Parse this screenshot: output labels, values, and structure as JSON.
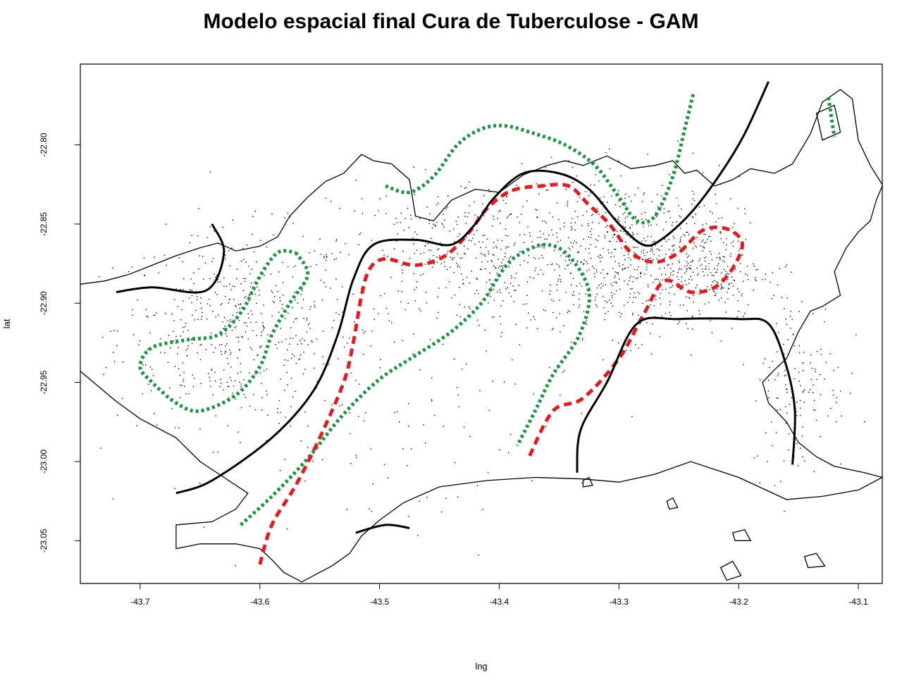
{
  "title": "Modelo espacial final Cura de Tuberculose - GAM",
  "chart_data": {
    "type": "map",
    "xlabel": "lng",
    "ylabel": "lat",
    "xlim": [
      -43.75,
      -43.08
    ],
    "ylim": [
      -23.077,
      -22.749
    ],
    "x_ticks": [
      -43.7,
      -43.6,
      -43.5,
      -43.4,
      -43.3,
      -43.2,
      -43.1
    ],
    "x_tick_labels": [
      "-43.7",
      "-43.6",
      "-43.5",
      "-43.4",
      "-43.3",
      "-43.2",
      "-43.1"
    ],
    "y_ticks": [
      -22.8,
      -22.85,
      -22.9,
      -22.95,
      -23.0,
      -23.05
    ],
    "y_tick_labels": [
      "-22.80",
      "-22.85",
      "-22.90",
      "-22.95",
      "-23.00",
      "-23.05"
    ],
    "colors": {
      "green_contour": "#1a9641",
      "red_contour": "#e41a1c",
      "black_contour": "#000000",
      "boundary": "#000000"
    },
    "boundary": [
      [
        -43.75,
        -22.888
      ],
      [
        -43.73,
        -22.886
      ],
      [
        -43.71,
        -22.882
      ],
      [
        -43.69,
        -22.876
      ],
      [
        -43.67,
        -22.87
      ],
      [
        -43.65,
        -22.865
      ],
      [
        -43.635,
        -22.862
      ],
      [
        -43.62,
        -22.867
      ],
      [
        -43.6,
        -22.864
      ],
      [
        -43.585,
        -22.858
      ],
      [
        -43.575,
        -22.845
      ],
      [
        -43.56,
        -22.833
      ],
      [
        -43.545,
        -22.823
      ],
      [
        -43.53,
        -22.818
      ],
      [
        -43.515,
        -22.806
      ],
      [
        -43.505,
        -22.81
      ],
      [
        -43.49,
        -22.812
      ],
      [
        -43.475,
        -22.822
      ],
      [
        -43.47,
        -22.845
      ],
      [
        -43.455,
        -22.848
      ],
      [
        -43.44,
        -22.835
      ],
      [
        -43.42,
        -22.828
      ],
      [
        -43.4,
        -22.83
      ],
      [
        -43.38,
        -22.819
      ],
      [
        -43.36,
        -22.813
      ],
      [
        -43.345,
        -22.81
      ],
      [
        -43.33,
        -22.813
      ],
      [
        -43.31,
        -22.807
      ],
      [
        -43.29,
        -22.815
      ],
      [
        -43.27,
        -22.813
      ],
      [
        -43.255,
        -22.81
      ],
      [
        -43.245,
        -22.818
      ],
      [
        -43.235,
        -22.816
      ],
      [
        -43.22,
        -22.826
      ],
      [
        -43.205,
        -22.822
      ],
      [
        -43.19,
        -22.815
      ],
      [
        -43.17,
        -22.818
      ],
      [
        -43.155,
        -22.812
      ],
      [
        -43.14,
        -22.793
      ],
      [
        -43.13,
        -22.773
      ],
      [
        -43.115,
        -22.765
      ],
      [
        -43.105,
        -22.771
      ],
      [
        -43.1,
        -22.797
      ],
      [
        -43.09,
        -22.813
      ],
      [
        -43.08,
        -22.825
      ],
      [
        -43.08,
        -22.826
      ],
      [
        -43.085,
        -22.835
      ],
      [
        -43.09,
        -22.848
      ],
      [
        -43.1,
        -22.855
      ],
      [
        -43.11,
        -22.865
      ],
      [
        -43.12,
        -22.88
      ],
      [
        -43.115,
        -22.895
      ],
      [
        -43.13,
        -22.902
      ],
      [
        -43.14,
        -22.905
      ],
      [
        -43.15,
        -22.918
      ],
      [
        -43.16,
        -22.935
      ],
      [
        -43.17,
        -22.942
      ],
      [
        -43.18,
        -22.95
      ],
      [
        -43.175,
        -22.963
      ],
      [
        -43.16,
        -22.975
      ],
      [
        -43.15,
        -22.988
      ],
      [
        -43.135,
        -22.997
      ],
      [
        -43.12,
        -23.003
      ],
      [
        -43.095,
        -23.007
      ],
      [
        -43.08,
        -23.01
      ],
      [
        -43.08,
        -23.01
      ],
      [
        -43.1,
        -23.018
      ],
      [
        -43.13,
        -23.022
      ],
      [
        -43.16,
        -23.024
      ],
      [
        -43.2,
        -23.01
      ],
      [
        -43.24,
        -23.0
      ],
      [
        -43.27,
        -23.008
      ],
      [
        -43.3,
        -23.013
      ],
      [
        -43.33,
        -23.011
      ],
      [
        -43.37,
        -23.01
      ],
      [
        -43.41,
        -23.012
      ],
      [
        -43.45,
        -23.016
      ],
      [
        -43.48,
        -23.026
      ],
      [
        -43.5,
        -23.037
      ],
      [
        -43.515,
        -23.047
      ],
      [
        -43.525,
        -23.058
      ],
      [
        -43.54,
        -23.066
      ],
      [
        -43.555,
        -23.072
      ],
      [
        -43.565,
        -23.076
      ],
      [
        -43.58,
        -23.07
      ],
      [
        -43.59,
        -23.062
      ],
      [
        -43.6,
        -23.055
      ],
      [
        -43.62,
        -23.052
      ],
      [
        -43.65,
        -23.052
      ],
      [
        -43.67,
        -23.055
      ],
      [
        -43.67,
        -23.04
      ],
      [
        -43.64,
        -23.038
      ],
      [
        -43.62,
        -23.03
      ],
      [
        -43.61,
        -23.02
      ],
      [
        -43.63,
        -23.01
      ],
      [
        -43.65,
        -23.0
      ],
      [
        -43.67,
        -22.985
      ],
      [
        -43.7,
        -22.973
      ],
      [
        -43.72,
        -22.962
      ],
      [
        -43.75,
        -22.943
      ]
    ],
    "islands": [
      [
        [
          -43.215,
          -23.067
        ],
        [
          -43.205,
          -23.063
        ],
        [
          -43.198,
          -23.072
        ],
        [
          -43.21,
          -23.075
        ]
      ],
      [
        [
          -43.145,
          -23.06
        ],
        [
          -43.135,
          -23.058
        ],
        [
          -43.128,
          -23.066
        ],
        [
          -43.142,
          -23.067
        ]
      ],
      [
        [
          -43.33,
          -23.012
        ],
        [
          -43.325,
          -23.01
        ],
        [
          -43.322,
          -23.015
        ],
        [
          -43.33,
          -23.016
        ]
      ],
      [
        [
          -43.135,
          -22.78
        ],
        [
          -43.12,
          -22.775
        ],
        [
          -43.115,
          -22.792
        ],
        [
          -43.13,
          -22.797
        ]
      ],
      [
        [
          -43.26,
          -23.025
        ],
        [
          -43.255,
          -23.023
        ],
        [
          -43.251,
          -23.029
        ],
        [
          -43.258,
          -23.03
        ]
      ],
      [
        [
          -43.205,
          -23.045
        ],
        [
          -43.195,
          -23.043
        ],
        [
          -43.19,
          -23.05
        ],
        [
          -43.203,
          -23.05
        ]
      ]
    ],
    "contours": [
      {
        "color": "green",
        "style": "dotted",
        "points": [
          [
            -43.495,
            -22.826
          ],
          [
            -43.475,
            -22.83
          ],
          [
            -43.455,
            -22.82
          ],
          [
            -43.435,
            -22.8
          ],
          [
            -43.415,
            -22.79
          ],
          [
            -43.395,
            -22.788
          ],
          [
            -43.37,
            -22.793
          ],
          [
            -43.345,
            -22.8
          ],
          [
            -43.32,
            -22.813
          ],
          [
            -43.3,
            -22.833
          ],
          [
            -43.285,
            -22.848
          ],
          [
            -43.27,
            -22.845
          ],
          [
            -43.255,
            -22.82
          ],
          [
            -43.245,
            -22.79
          ],
          [
            -43.238,
            -22.768
          ]
        ]
      },
      {
        "color": "green",
        "style": "dotted",
        "points": [
          [
            -43.125,
            -22.77
          ],
          [
            -43.12,
            -22.795
          ]
        ]
      },
      {
        "color": "green",
        "style": "dotted",
        "points": [
          [
            -43.57,
            -22.868
          ],
          [
            -43.56,
            -22.882
          ],
          [
            -43.575,
            -22.9
          ],
          [
            -43.59,
            -22.92
          ],
          [
            -43.6,
            -22.94
          ],
          [
            -43.62,
            -22.958
          ],
          [
            -43.65,
            -22.968
          ],
          [
            -43.67,
            -22.963
          ],
          [
            -43.69,
            -22.95
          ],
          [
            -43.7,
            -22.94
          ],
          [
            -43.69,
            -22.928
          ],
          [
            -43.66,
            -22.923
          ],
          [
            -43.635,
            -22.92
          ],
          [
            -43.615,
            -22.905
          ],
          [
            -43.6,
            -22.883
          ],
          [
            -43.585,
            -22.868
          ],
          [
            -43.57,
            -22.868
          ]
        ]
      },
      {
        "color": "green",
        "style": "dotted",
        "points": [
          [
            -43.616,
            -23.04
          ],
          [
            -43.59,
            -23.022
          ],
          [
            -43.56,
            -22.998
          ],
          [
            -43.53,
            -22.97
          ],
          [
            -43.5,
            -22.948
          ],
          [
            -43.47,
            -22.933
          ],
          [
            -43.44,
            -22.918
          ],
          [
            -43.415,
            -22.9
          ],
          [
            -43.398,
            -22.88
          ],
          [
            -43.385,
            -22.87
          ],
          [
            -43.362,
            -22.863
          ],
          [
            -43.342,
            -22.87
          ],
          [
            -43.325,
            -22.893
          ],
          [
            -43.333,
            -22.92
          ],
          [
            -43.355,
            -22.945
          ],
          [
            -43.37,
            -22.968
          ],
          [
            -43.385,
            -22.99
          ]
        ]
      },
      {
        "color": "red",
        "style": "dashed",
        "points": [
          [
            -43.6,
            -23.065
          ],
          [
            -43.59,
            -23.04
          ],
          [
            -43.57,
            -23.015
          ],
          [
            -43.55,
            -22.985
          ],
          [
            -43.53,
            -22.95
          ],
          [
            -43.522,
            -22.925
          ],
          [
            -43.515,
            -22.895
          ],
          [
            -43.508,
            -22.878
          ],
          [
            -43.495,
            -22.872
          ],
          [
            -43.47,
            -22.876
          ],
          [
            -43.445,
            -22.87
          ],
          [
            -43.425,
            -22.855
          ],
          [
            -43.41,
            -22.84
          ],
          [
            -43.39,
            -22.829
          ],
          [
            -43.365,
            -22.826
          ],
          [
            -43.342,
            -22.826
          ],
          [
            -43.325,
            -22.838
          ],
          [
            -43.308,
            -22.85
          ],
          [
            -43.29,
            -22.868
          ],
          [
            -43.27,
            -22.874
          ],
          [
            -43.25,
            -22.868
          ],
          [
            -43.23,
            -22.854
          ],
          [
            -43.21,
            -22.853
          ],
          [
            -43.197,
            -22.862
          ],
          [
            -43.205,
            -22.878
          ],
          [
            -43.22,
            -22.89
          ],
          [
            -43.24,
            -22.893
          ],
          [
            -43.262,
            -22.886
          ],
          [
            -43.28,
            -22.908
          ],
          [
            -43.3,
            -22.935
          ],
          [
            -43.33,
            -22.96
          ],
          [
            -43.355,
            -22.968
          ],
          [
            -43.375,
            -22.997
          ]
        ]
      },
      {
        "color": "black",
        "style": "solid",
        "points": [
          [
            -43.67,
            -23.02
          ],
          [
            -43.64,
            -23.012
          ],
          [
            -43.59,
            -22.985
          ],
          [
            -43.555,
            -22.955
          ],
          [
            -43.535,
            -22.92
          ],
          [
            -43.522,
            -22.885
          ],
          [
            -43.505,
            -22.863
          ],
          [
            -43.47,
            -22.86
          ],
          [
            -43.44,
            -22.863
          ],
          [
            -43.42,
            -22.85
          ],
          [
            -43.405,
            -22.834
          ],
          [
            -43.38,
            -22.818
          ],
          [
            -43.35,
            -22.818
          ],
          [
            -43.325,
            -22.828
          ],
          [
            -43.3,
            -22.85
          ],
          [
            -43.28,
            -22.863
          ],
          [
            -43.265,
            -22.86
          ],
          [
            -43.24,
            -22.843
          ],
          [
            -43.215,
            -22.818
          ],
          [
            -43.195,
            -22.793
          ],
          [
            -43.175,
            -22.76
          ]
        ]
      },
      {
        "color": "black",
        "style": "solid",
        "points": [
          [
            -43.72,
            -22.893
          ],
          [
            -43.69,
            -22.89
          ],
          [
            -43.645,
            -22.892
          ],
          [
            -43.63,
            -22.868
          ],
          [
            -43.64,
            -22.85
          ]
        ]
      },
      {
        "color": "black",
        "style": "solid",
        "points": [
          [
            -43.335,
            -23.007
          ],
          [
            -43.332,
            -22.98
          ],
          [
            -43.31,
            -22.95
          ],
          [
            -43.285,
            -22.913
          ],
          [
            -43.25,
            -22.91
          ],
          [
            -43.2,
            -22.91
          ],
          [
            -43.175,
            -22.913
          ],
          [
            -43.16,
            -22.94
          ],
          [
            -43.153,
            -22.968
          ],
          [
            -43.155,
            -23.002
          ]
        ]
      },
      {
        "color": "black",
        "style": "solid",
        "points": [
          [
            -43.52,
            -23.045
          ],
          [
            -43.495,
            -23.04
          ],
          [
            -43.475,
            -23.042
          ]
        ]
      }
    ],
    "point_clusters": [
      {
        "cx": -43.62,
        "cy": -22.915,
        "sx": 0.05,
        "sy": 0.03,
        "n": 520
      },
      {
        "cx": -43.42,
        "cy": -22.87,
        "sx": 0.06,
        "sy": 0.025,
        "n": 480
      },
      {
        "cx": -43.29,
        "cy": -22.87,
        "sx": 0.045,
        "sy": 0.025,
        "n": 560
      },
      {
        "cx": -43.23,
        "cy": -22.88,
        "sx": 0.025,
        "sy": 0.015,
        "n": 200
      },
      {
        "cx": -43.15,
        "cy": -22.95,
        "sx": 0.02,
        "sy": 0.03,
        "n": 150
      },
      {
        "cx": -43.5,
        "cy": -22.97,
        "sx": 0.08,
        "sy": 0.04,
        "n": 120
      }
    ]
  }
}
